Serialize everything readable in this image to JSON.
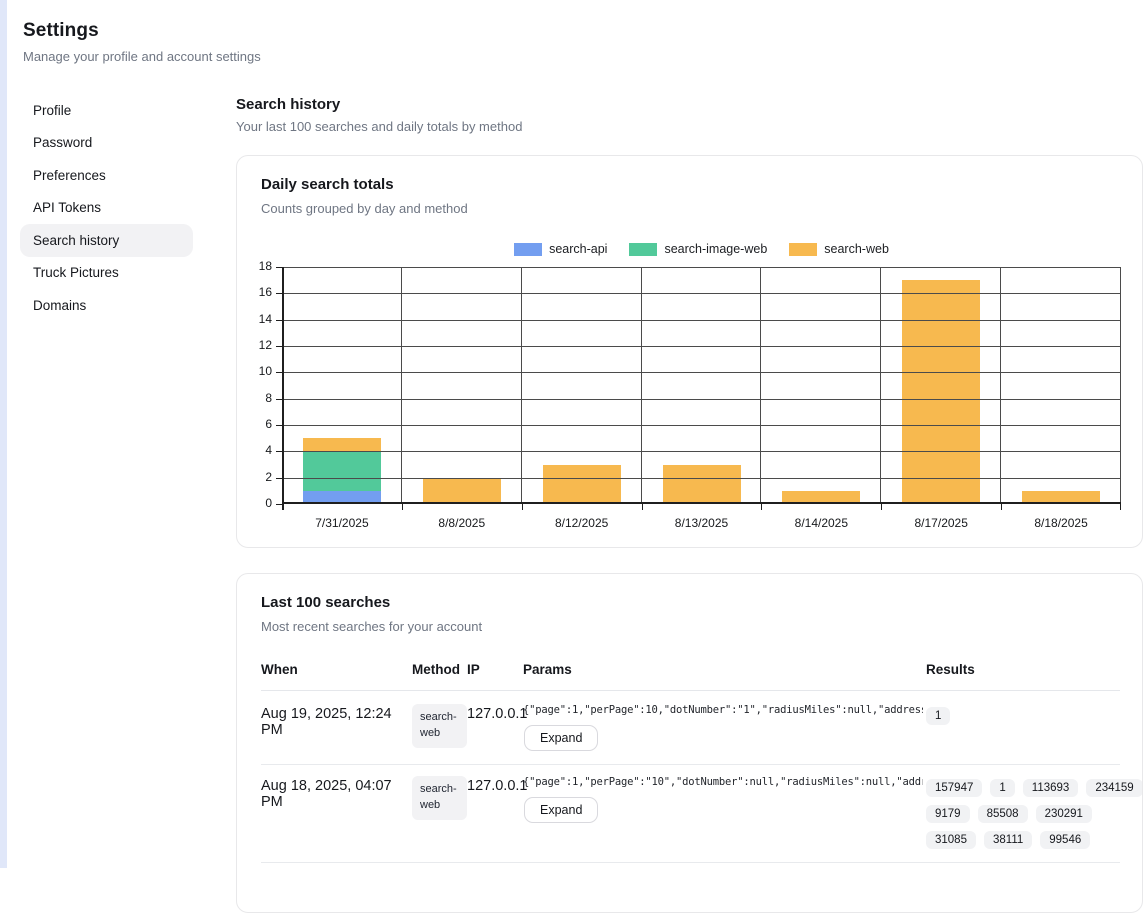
{
  "page": {
    "title": "Settings",
    "subtitle": "Manage your profile and account settings"
  },
  "sidebar": {
    "items": [
      {
        "label": "Profile",
        "active": false
      },
      {
        "label": "Password",
        "active": false
      },
      {
        "label": "Preferences",
        "active": false
      },
      {
        "label": "API Tokens",
        "active": false
      },
      {
        "label": "Search history",
        "active": true
      },
      {
        "label": "Truck Pictures",
        "active": false
      },
      {
        "label": "Domains",
        "active": false
      }
    ]
  },
  "section": {
    "title": "Search history",
    "subtitle": "Your last 100 searches and daily totals by method"
  },
  "chart_card": {
    "title": "Daily search totals",
    "subtitle": "Counts grouped by day and method"
  },
  "chart_data": {
    "type": "bar",
    "stacked": true,
    "title": "Daily search totals",
    "categories": [
      "7/31/2025",
      "8/8/2025",
      "8/12/2025",
      "8/13/2025",
      "8/14/2025",
      "8/17/2025",
      "8/18/2025"
    ],
    "series": [
      {
        "name": "search-api",
        "color": "#739EF0",
        "values": [
          1,
          0,
          0,
          0,
          0,
          0,
          0
        ]
      },
      {
        "name": "search-image-web",
        "color": "#52C99A",
        "values": [
          3,
          0,
          0,
          0,
          0,
          0,
          0
        ]
      },
      {
        "name": "search-web",
        "color": "#F7B94F",
        "values": [
          1,
          2,
          3,
          3,
          1,
          17,
          1
        ]
      }
    ],
    "ylim": [
      0,
      18
    ],
    "ytick_step": 2,
    "grid": true,
    "legend_position": "top"
  },
  "table_card": {
    "title": "Last 100 searches",
    "subtitle": "Most recent searches for your account",
    "columns": [
      "When",
      "Method",
      "IP",
      "Params",
      "Results"
    ],
    "expand_label": "Expand",
    "rows": [
      {
        "when": "Aug 19, 2025, 12:24 PM",
        "method": "search-web",
        "ip": "127.0.0.1",
        "params": "{\"page\":1,\"perPage\":10,\"dotNumber\":\"1\",\"radiusMiles\":null,\"address…",
        "results": [
          "1"
        ]
      },
      {
        "when": "Aug 18, 2025, 04:07 PM",
        "method": "search-web",
        "ip": "127.0.0.1",
        "params": "{\"page\":1,\"perPage\":\"10\",\"dotNumber\":null,\"radiusMiles\":null,\"addr…",
        "results": [
          "157947",
          "1",
          "113693",
          "234159",
          "9179",
          "85508",
          "230291",
          "31085",
          "38111",
          "99546"
        ]
      }
    ]
  }
}
